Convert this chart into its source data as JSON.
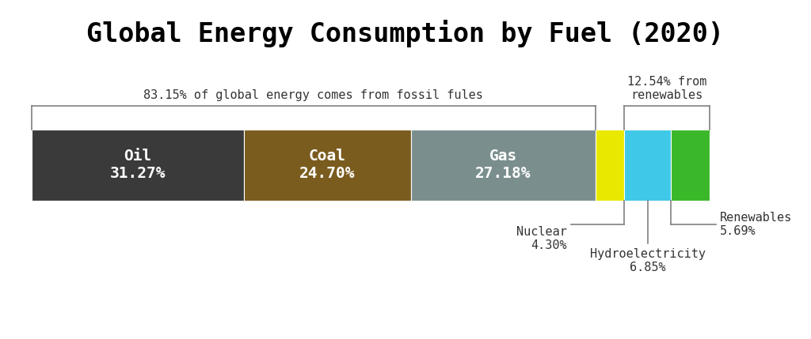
{
  "title": "Global Energy Consumption by Fuel (2020)",
  "segments": [
    {
      "label": "Oil",
      "pct": 31.27,
      "color": "#3a3a3a"
    },
    {
      "label": "Coal",
      "pct": 24.7,
      "color": "#7a5c1e"
    },
    {
      "label": "Gas",
      "pct": 27.18,
      "color": "#7a8e8e"
    },
    {
      "label": "Nuclear",
      "pct": 4.3,
      "color": "#e8e800"
    },
    {
      "label": "Hydroelectricity",
      "pct": 6.85,
      "color": "#40c8e8"
    },
    {
      "label": "Renewables",
      "pct": 5.69,
      "color": "#3ab82a"
    }
  ],
  "fossil_label": "83.15% of global energy comes from fossil fules",
  "renewables_label": "12.54% from\nrenewables",
  "background_color": "#ffffff",
  "title_fontsize": 24,
  "label_fontsize": 11,
  "inner_label_fontsize": 14
}
